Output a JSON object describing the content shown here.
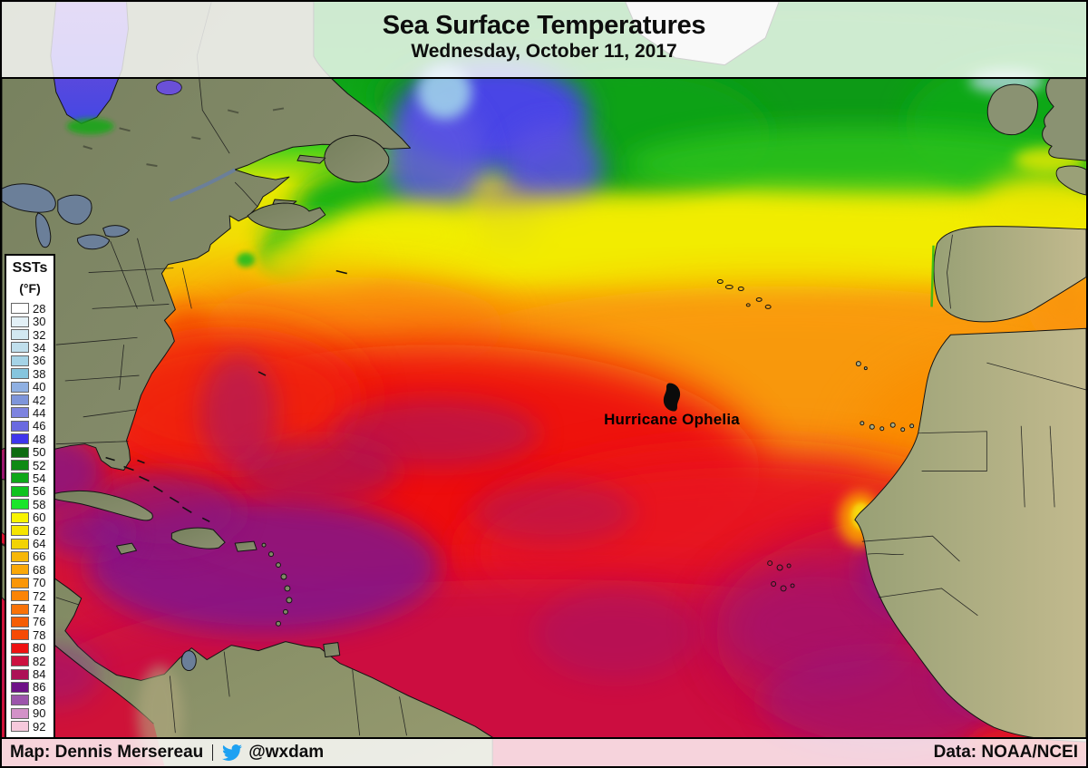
{
  "header": {
    "title": "Sea Surface Temperatures",
    "subtitle": "Wednesday, October 11, 2017"
  },
  "legend": {
    "title": "SSTs",
    "unit": "(°F)",
    "entries": [
      {
        "temp": 28,
        "color": "#ffffff"
      },
      {
        "temp": 30,
        "color": "#e3f0f6"
      },
      {
        "temp": 32,
        "color": "#d2e8f1"
      },
      {
        "temp": 34,
        "color": "#c0dfec"
      },
      {
        "temp": 36,
        "color": "#a5d3e6"
      },
      {
        "temp": 38,
        "color": "#85c5de"
      },
      {
        "temp": 40,
        "color": "#8fb0e2"
      },
      {
        "temp": 42,
        "color": "#7e95da"
      },
      {
        "temp": 44,
        "color": "#7d83e0"
      },
      {
        "temp": 46,
        "color": "#6a6ae0"
      },
      {
        "temp": 48,
        "color": "#3f35ed"
      },
      {
        "temp": 50,
        "color": "#0e6b12"
      },
      {
        "temp": 52,
        "color": "#0e8a14"
      },
      {
        "temp": 54,
        "color": "#0fa719"
      },
      {
        "temp": 56,
        "color": "#0fc31e"
      },
      {
        "temp": 58,
        "color": "#1ae52a"
      },
      {
        "temp": 60,
        "color": "#f8f400"
      },
      {
        "temp": 62,
        "color": "#f5e400"
      },
      {
        "temp": 64,
        "color": "#f2d303"
      },
      {
        "temp": 66,
        "color": "#f7b708"
      },
      {
        "temp": 68,
        "color": "#f9a808"
      },
      {
        "temp": 70,
        "color": "#fa9607"
      },
      {
        "temp": 72,
        "color": "#fb8405"
      },
      {
        "temp": 74,
        "color": "#f97207"
      },
      {
        "temp": 76,
        "color": "#f55d05"
      },
      {
        "temp": 78,
        "color": "#f64a05"
      },
      {
        "temp": 80,
        "color": "#ee1111"
      },
      {
        "temp": 82,
        "color": "#cc1140"
      },
      {
        "temp": 84,
        "color": "#ad1157"
      },
      {
        "temp": 86,
        "color": "#6e1187"
      },
      {
        "temp": 88,
        "color": "#9c55ab"
      },
      {
        "temp": 90,
        "color": "#d391c8"
      },
      {
        "temp": 92,
        "color": "#f6c9dc"
      }
    ]
  },
  "map": {
    "storm": {
      "label": "Hurricane Ophelia",
      "icon": "hurricane-icon"
    }
  },
  "footer": {
    "credit": "Map: Dennis Mersereau",
    "separator": "|",
    "twitter": {
      "icon": "twitter-bird-icon",
      "handle": "@wxdam",
      "color": "#1da1f2"
    },
    "data_source": "Data: NOAA/NCEI"
  }
}
